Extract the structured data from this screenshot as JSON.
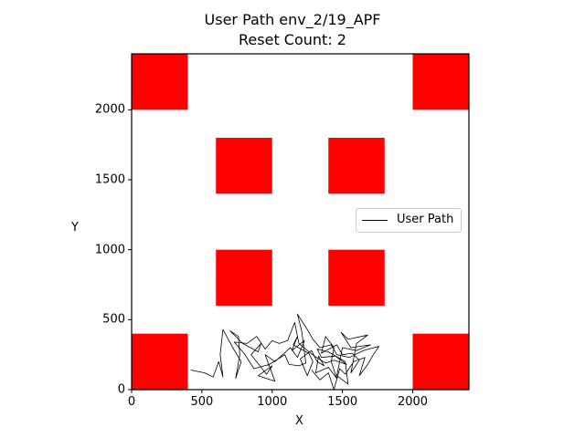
{
  "chart_data": {
    "type": "line",
    "title": "User Path env_2/19_APF",
    "subtitle": "Reset Count: 2",
    "xlabel": "X",
    "ylabel": "Y",
    "xlim": [
      0,
      2400
    ],
    "ylim": [
      0,
      2400
    ],
    "xticks": [
      0,
      500,
      1000,
      1500,
      2000
    ],
    "yticks": [
      0,
      500,
      1000,
      1500,
      2000
    ],
    "grid": false,
    "legend": {
      "placement": "center-right",
      "entries": [
        "User Path"
      ]
    },
    "colors": {
      "obstacle": "#ff0000",
      "path": "#000000",
      "legend_border": "#cccccc"
    },
    "obstacles": [
      {
        "x0": 0,
        "y0": 2000,
        "x1": 400,
        "y1": 2400
      },
      {
        "x0": 2000,
        "y0": 2000,
        "x1": 2400,
        "y1": 2400
      },
      {
        "x0": 600,
        "y0": 1400,
        "x1": 1000,
        "y1": 1800
      },
      {
        "x0": 1400,
        "y0": 1400,
        "x1": 1800,
        "y1": 1800
      },
      {
        "x0": 600,
        "y0": 600,
        "x1": 1000,
        "y1": 1000
      },
      {
        "x0": 1400,
        "y0": 600,
        "x1": 1800,
        "y1": 1000
      },
      {
        "x0": 0,
        "y0": 0,
        "x1": 400,
        "y1": 400
      },
      {
        "x0": 2000,
        "y0": 0,
        "x1": 2400,
        "y1": 400
      }
    ],
    "series": [
      {
        "name": "User Path",
        "points": [
          [
            420,
            140
          ],
          [
            520,
            120
          ],
          [
            580,
            90
          ],
          [
            620,
            200
          ],
          [
            650,
            90
          ],
          [
            630,
            250
          ],
          [
            650,
            430
          ],
          [
            720,
            300
          ],
          [
            780,
            200
          ],
          [
            740,
            80
          ],
          [
            770,
            250
          ],
          [
            760,
            380
          ],
          [
            700,
            420
          ],
          [
            790,
            330
          ],
          [
            900,
            270
          ],
          [
            920,
            330
          ],
          [
            850,
            250
          ],
          [
            960,
            110
          ],
          [
            1000,
            170
          ],
          [
            900,
            100
          ],
          [
            1020,
            60
          ],
          [
            950,
            250
          ],
          [
            1020,
            200
          ],
          [
            1130,
            300
          ],
          [
            1180,
            230
          ],
          [
            1230,
            350
          ],
          [
            1140,
            280
          ],
          [
            1180,
            380
          ],
          [
            1150,
            320
          ],
          [
            1260,
            260
          ],
          [
            1290,
            200
          ],
          [
            1250,
            100
          ],
          [
            1200,
            220
          ],
          [
            1280,
            280
          ],
          [
            1320,
            200
          ],
          [
            1370,
            170
          ],
          [
            1330,
            240
          ],
          [
            1310,
            120
          ],
          [
            1400,
            160
          ],
          [
            1460,
            80
          ],
          [
            1420,
            200
          ],
          [
            1440,
            300
          ],
          [
            1380,
            380
          ],
          [
            1350,
            260
          ],
          [
            1460,
            320
          ],
          [
            1500,
            250
          ],
          [
            1570,
            260
          ],
          [
            1620,
            210
          ],
          [
            1560,
            120
          ],
          [
            1600,
            330
          ],
          [
            1680,
            390
          ],
          [
            1540,
            360
          ],
          [
            1490,
            410
          ],
          [
            1560,
            300
          ],
          [
            1700,
            320
          ],
          [
            1600,
            280
          ],
          [
            1500,
            300
          ],
          [
            1460,
            100
          ],
          [
            1540,
            40
          ],
          [
            1520,
            200
          ],
          [
            1400,
            270
          ],
          [
            1320,
            290
          ],
          [
            1350,
            230
          ],
          [
            1450,
            240
          ],
          [
            1530,
            180
          ],
          [
            1440,
            210
          ],
          [
            1380,
            190
          ],
          [
            1300,
            240
          ],
          [
            1250,
            280
          ],
          [
            1190,
            330
          ],
          [
            1160,
            480
          ],
          [
            1110,
            350
          ],
          [
            1050,
            330
          ],
          [
            1000,
            350
          ],
          [
            950,
            290
          ],
          [
            890,
            380
          ],
          [
            820,
            330
          ],
          [
            730,
            340
          ],
          [
            800,
            260
          ],
          [
            870,
            150
          ],
          [
            980,
            180
          ],
          [
            1090,
            250
          ],
          [
            1120,
            180
          ],
          [
            1190,
            170
          ],
          [
            1240,
            190
          ],
          [
            1210,
            420
          ],
          [
            1180,
            540
          ],
          [
            1250,
            430
          ],
          [
            1290,
            360
          ],
          [
            1340,
            300
          ],
          [
            1420,
            320
          ],
          [
            1460,
            250
          ],
          [
            1550,
            230
          ],
          [
            1650,
            280
          ],
          [
            1760,
            310
          ],
          [
            1720,
            250
          ],
          [
            1680,
            180
          ],
          [
            1620,
            100
          ],
          [
            1660,
            230
          ],
          [
            1580,
            200
          ],
          [
            1520,
            110
          ],
          [
            1480,
            150
          ],
          [
            1440,
            0
          ],
          [
            1400,
            120
          ],
          [
            1340,
            70
          ],
          [
            1280,
            140
          ]
        ]
      }
    ]
  }
}
